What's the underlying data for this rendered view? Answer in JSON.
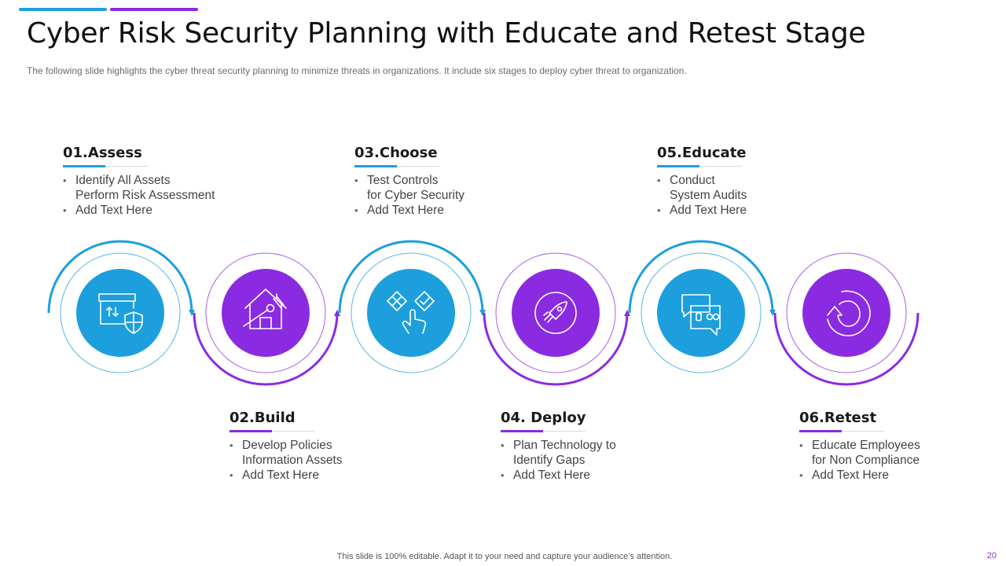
{
  "header": {
    "title": "Cyber Risk Security Planning with Educate and Retest Stage",
    "subtitle": "The following  slide highlights the cyber threat security planning to minimize threats in organizations.  It include six stages to deploy cyber threat to organization."
  },
  "colors": {
    "blue": "#1c9fdc",
    "purple": "#8a2be2"
  },
  "stages": [
    {
      "heading": "01.Assess",
      "color": "blue",
      "icon": "checklist-shield-icon",
      "bullets": [
        {
          "line1": "Identify All Assets",
          "line2": "Perform Risk Assessment"
        },
        {
          "line1": "Add Text Here"
        }
      ]
    },
    {
      "heading": "02.Build",
      "color": "purple",
      "icon": "house-wrench-icon",
      "bullets": [
        {
          "line1": "Develop Policies",
          "line2": "Information Assets"
        },
        {
          "line1": "Add Text Here"
        }
      ]
    },
    {
      "heading": "03.Choose",
      "color": "blue",
      "icon": "choice-hand-icon",
      "bullets": [
        {
          "line1": "Test Controls",
          "line2": " for Cyber Security"
        },
        {
          "line1": "Add Text Here"
        }
      ]
    },
    {
      "heading": "04. Deploy",
      "color": "purple",
      "icon": "rocket-target-icon",
      "bullets": [
        {
          "line1": "Plan Technology to",
          "line2": "Identify  Gaps"
        },
        {
          "line1": "Add Text Here"
        }
      ]
    },
    {
      "heading": "05.Educate",
      "color": "blue",
      "icon": "chat-bubbles-icon",
      "bullets": [
        {
          "line1": "Conduct",
          "line2": "System Audits"
        },
        {
          "line1": "Add Text Here"
        }
      ]
    },
    {
      "heading": "06.Retest",
      "color": "purple",
      "icon": "refresh-arrow-icon",
      "bullets": [
        {
          "line1": "Educate Employees",
          "line2": "for Non Compliance"
        },
        {
          "line1": "Add Text Here"
        }
      ]
    }
  ],
  "footer": {
    "note": "This slide is 100% editable. Adapt it to your need and capture your audience’s attention.",
    "page_number": "20"
  }
}
